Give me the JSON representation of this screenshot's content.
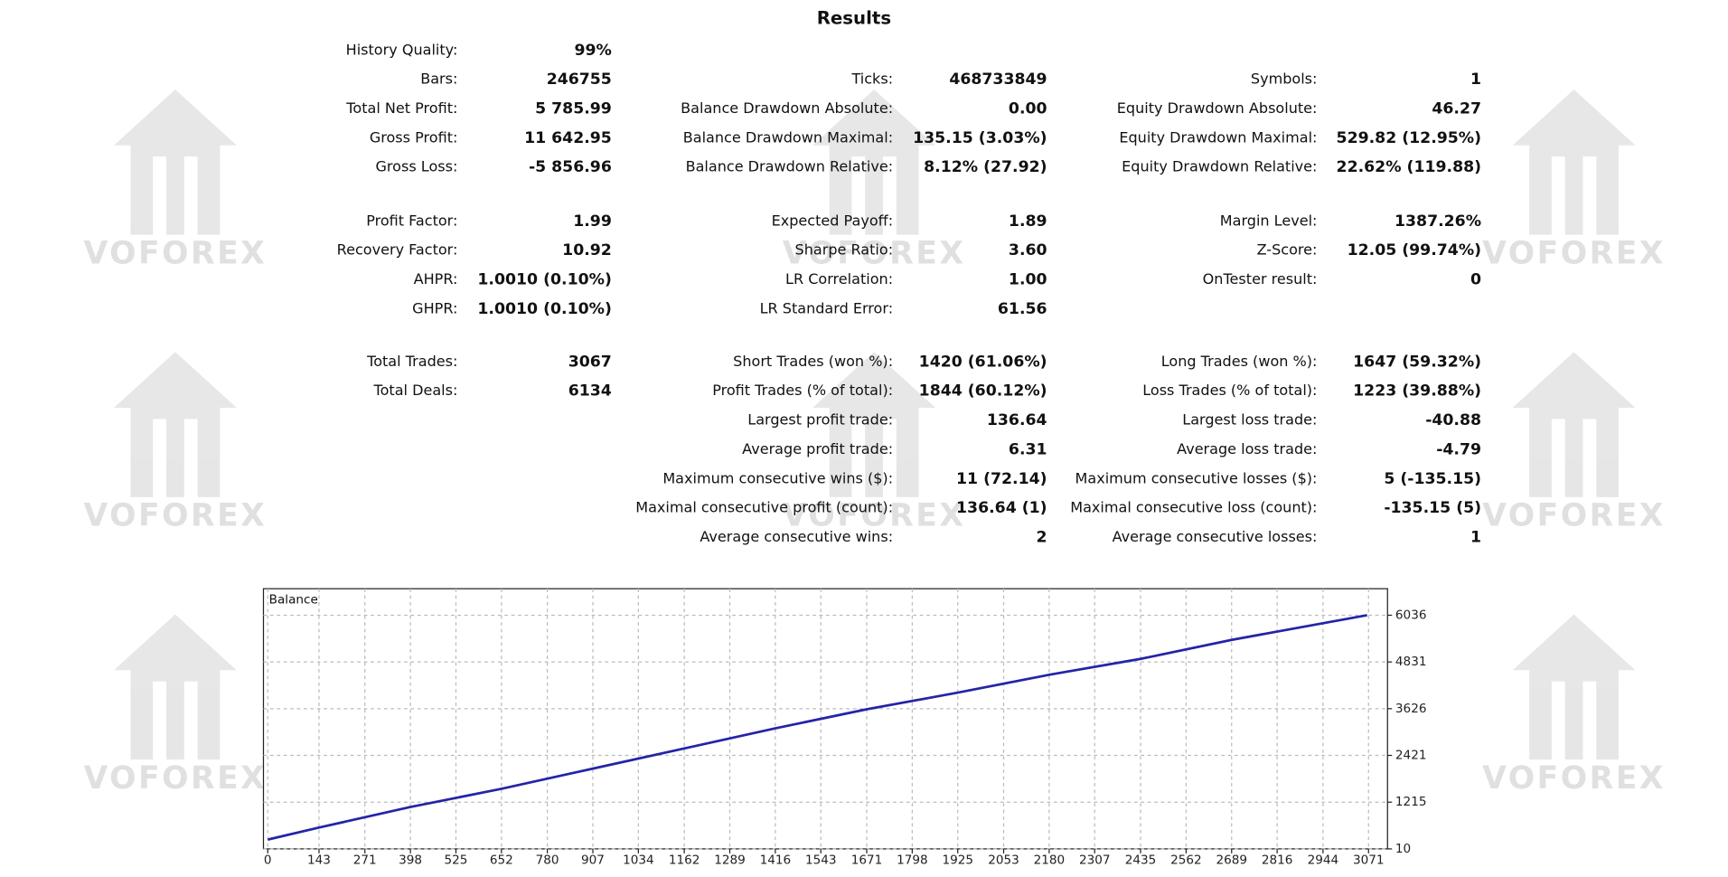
{
  "title": "Results",
  "watermark": "VOFOREX",
  "columns": [
    [
      [
        {
          "label": "History Quality:",
          "value": "99%"
        },
        {
          "label": "Bars:",
          "value": "246755"
        },
        {
          "label": "Total Net Profit:",
          "value": "5 785.99"
        },
        {
          "label": "Gross Profit:",
          "value": "11 642.95"
        },
        {
          "label": "Gross Loss:",
          "value": "-5 856.96"
        }
      ],
      [
        {
          "label": "Profit Factor:",
          "value": "1.99"
        },
        {
          "label": "Recovery Factor:",
          "value": "10.92"
        },
        {
          "label": "AHPR:",
          "value": "1.0010 (0.10%)"
        },
        {
          "label": "GHPR:",
          "value": "1.0010 (0.10%)"
        }
      ],
      [
        {
          "label": "Total Trades:",
          "value": "3067"
        },
        {
          "label": "Total Deals:",
          "value": "6134"
        }
      ]
    ],
    [
      [
        {
          "label": "Ticks:",
          "value": "468733849"
        },
        {
          "label": "Balance Drawdown Absolute:",
          "value": "0.00"
        },
        {
          "label": "Balance Drawdown Maximal:",
          "value": "135.15 (3.03%)"
        },
        {
          "label": "Balance Drawdown Relative:",
          "value": "8.12% (27.92)"
        }
      ],
      [
        {
          "label": "Expected Payoff:",
          "value": "1.89"
        },
        {
          "label": "Sharpe Ratio:",
          "value": "3.60"
        },
        {
          "label": "LR Correlation:",
          "value": "1.00"
        },
        {
          "label": "LR Standard Error:",
          "value": "61.56"
        }
      ],
      [
        {
          "label": "Short Trades (won %):",
          "value": "1420 (61.06%)"
        },
        {
          "label": "Profit Trades (% of total):",
          "value": "1844 (60.12%)"
        },
        {
          "label": "Largest profit trade:",
          "value": "136.64"
        },
        {
          "label": "Average profit trade:",
          "value": "6.31"
        },
        {
          "label": "Maximum consecutive wins ($):",
          "value": "11 (72.14)"
        },
        {
          "label": "Maximal consecutive profit (count):",
          "value": "136.64 (1)"
        },
        {
          "label": "Average consecutive wins:",
          "value": "2"
        }
      ]
    ],
    [
      [
        {
          "label": "Symbols:",
          "value": "1"
        },
        {
          "label": "Equity Drawdown Absolute:",
          "value": "46.27"
        },
        {
          "label": "Equity Drawdown Maximal:",
          "value": "529.82 (12.95%)"
        },
        {
          "label": "Equity Drawdown Relative:",
          "value": "22.62% (119.88)"
        }
      ],
      [
        {
          "label": "Margin Level:",
          "value": "1387.26%"
        },
        {
          "label": "Z-Score:",
          "value": "12.05 (99.74%)"
        },
        {
          "label": "OnTester result:",
          "value": "0"
        }
      ],
      [
        {
          "label": "Long Trades (won %):",
          "value": "1647 (59.32%)"
        },
        {
          "label": "Loss Trades (% of total):",
          "value": "1223 (39.88%)"
        },
        {
          "label": "Largest loss trade:",
          "value": "-40.88"
        },
        {
          "label": "Average loss trade:",
          "value": "-4.79"
        },
        {
          "label": "Maximum consecutive losses ($):",
          "value": "5 (-135.15)"
        },
        {
          "label": "Maximal consecutive loss (count):",
          "value": "-135.15 (5)"
        },
        {
          "label": "Average consecutive losses:",
          "value": "1"
        }
      ]
    ]
  ],
  "chart_data": {
    "type": "line",
    "title": "Balance",
    "x": [
      0,
      143,
      398,
      652,
      907,
      1162,
      1416,
      1671,
      1925,
      2180,
      2435,
      2689,
      2944,
      3067
    ],
    "series": [
      {
        "name": "Balance",
        "color": "#2424a8",
        "values": [
          250,
          560,
          1090,
          1560,
          2080,
          2600,
          3120,
          3610,
          4040,
          4500,
          4910,
          5400,
          5830,
          6036
        ]
      }
    ],
    "xlim": [
      -12,
      3124
    ],
    "ylim": [
      10,
      6720
    ],
    "xticks": [
      0,
      143,
      271,
      398,
      525,
      652,
      780,
      907,
      1034,
      1162,
      1289,
      1416,
      1543,
      1671,
      1798,
      1925,
      2053,
      2180,
      2307,
      2435,
      2562,
      2689,
      2816,
      2944,
      3071
    ],
    "yticks": [
      10,
      1215,
      2421,
      3626,
      4831,
      6036
    ],
    "grid": true
  }
}
